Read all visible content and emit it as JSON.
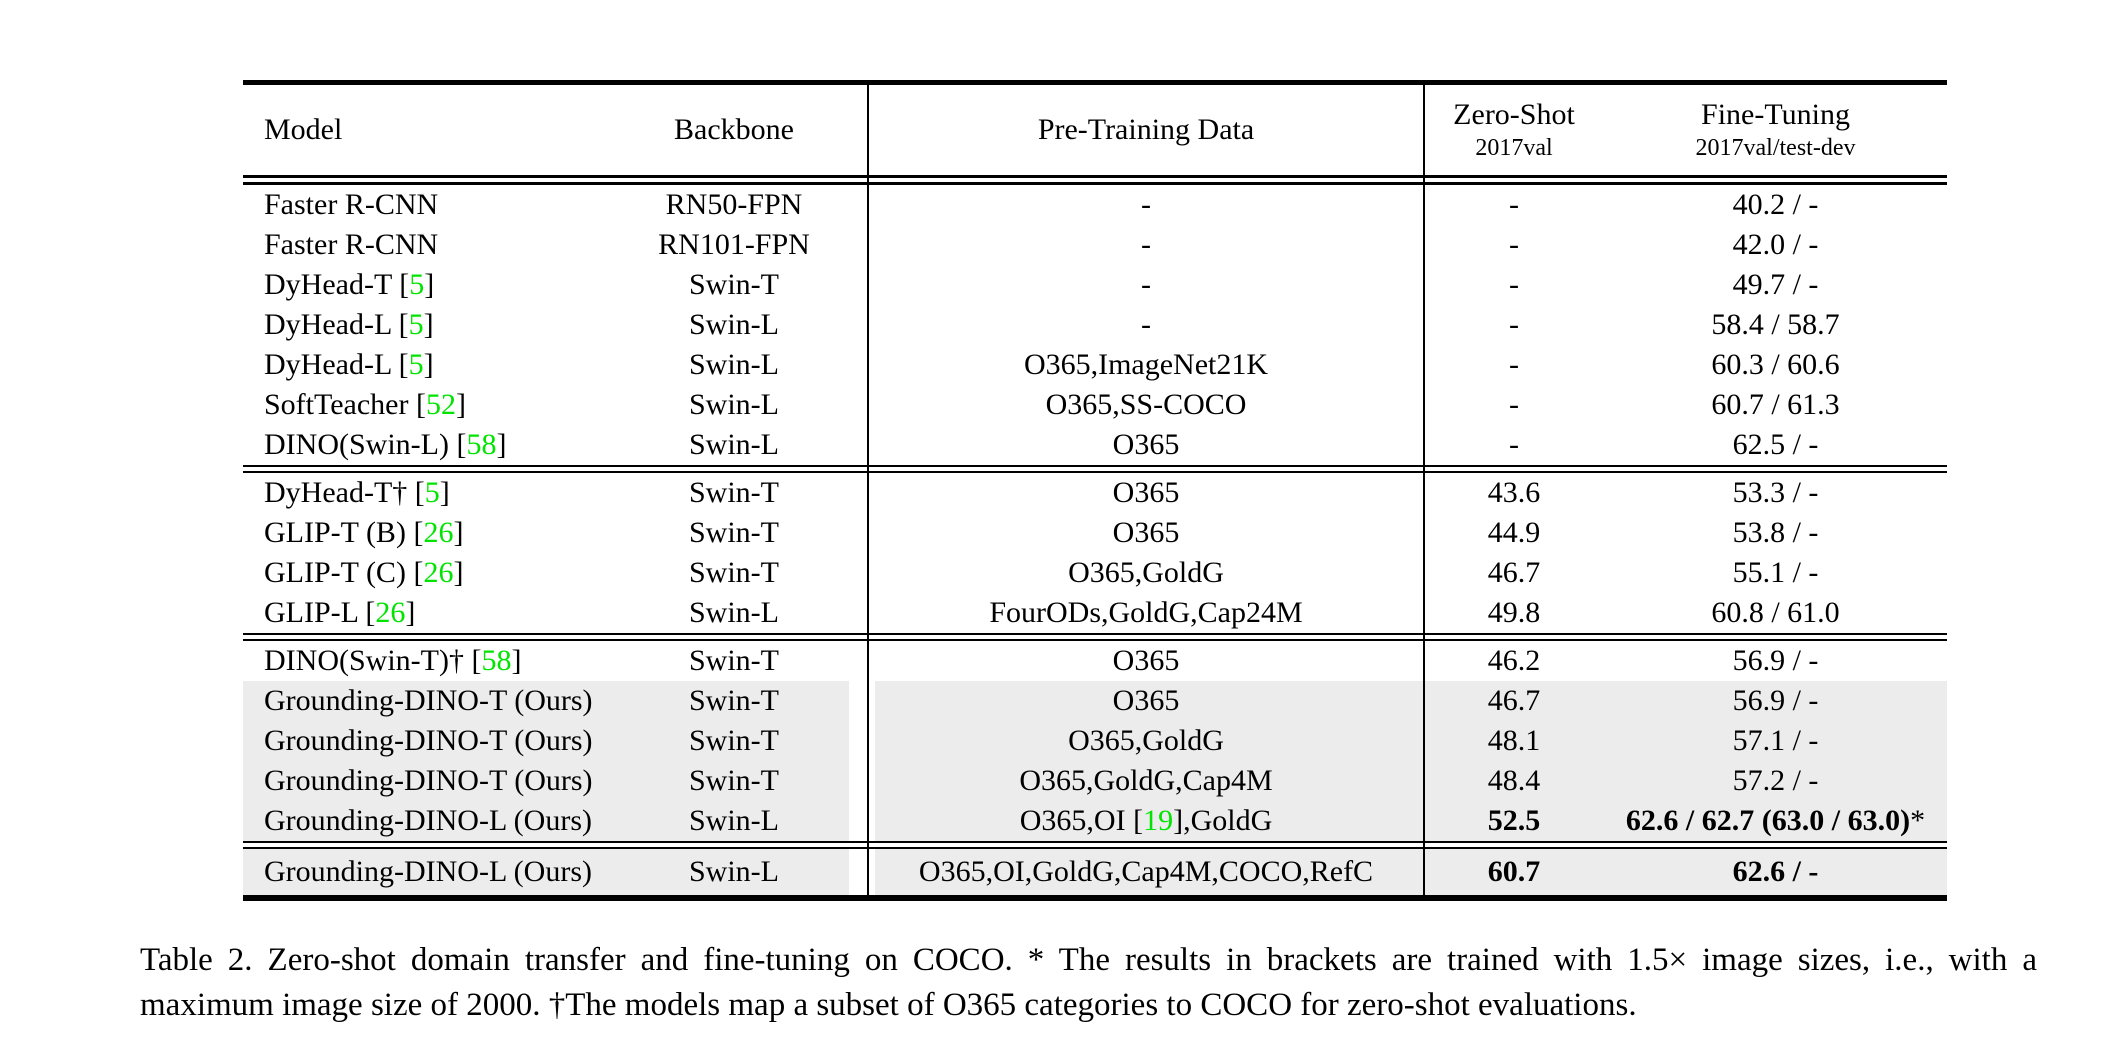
{
  "colors": {
    "citation_green": "#00e400",
    "row_highlight": "#ececec"
  },
  "table": {
    "header": {
      "model": "Model",
      "backbone": "Backbone",
      "pretrain": "Pre-Training Data",
      "zeroshot_line1": "Zero-Shot",
      "zeroshot_line2": "2017val",
      "finetune_line1": "Fine-Tuning",
      "finetune_line2": "2017val/test-dev"
    },
    "groups": [
      {
        "rows": [
          {
            "model": "Faster R-CNN",
            "backbone": "RN50-FPN",
            "pretrain": "-",
            "zeroshot": "-",
            "finetune": "40.2 / -"
          },
          {
            "model": "Faster R-CNN",
            "backbone": "RN101-FPN",
            "pretrain": "-",
            "zeroshot": "-",
            "finetune": "42.0 / -"
          },
          {
            "model": "DyHead-T [5]",
            "backbone": "Swin-T",
            "pretrain": "-",
            "zeroshot": "-",
            "finetune": "49.7 / -"
          },
          {
            "model": "DyHead-L [5]",
            "backbone": "Swin-L",
            "pretrain": "-",
            "zeroshot": "-",
            "finetune": "58.4 / 58.7"
          },
          {
            "model": "DyHead-L [5]",
            "backbone": "Swin-L",
            "pretrain": "O365,ImageNet21K",
            "zeroshot": "-",
            "finetune": "60.3 / 60.6"
          },
          {
            "model": "SoftTeacher [52]",
            "backbone": "Swin-L",
            "pretrain": "O365,SS-COCO",
            "zeroshot": "-",
            "finetune": "60.7 / 61.3"
          },
          {
            "model": "DINO(Swin-L) [58]",
            "backbone": "Swin-L",
            "pretrain": "O365",
            "zeroshot": "-",
            "finetune": "62.5 / -"
          }
        ]
      },
      {
        "rows": [
          {
            "model": "DyHead-T† [5]",
            "backbone": "Swin-T",
            "pretrain": "O365",
            "zeroshot": "43.6",
            "finetune": "53.3 / -"
          },
          {
            "model": "GLIP-T (B) [26]",
            "backbone": "Swin-T",
            "pretrain": "O365",
            "zeroshot": "44.9",
            "finetune": "53.8 / -"
          },
          {
            "model": "GLIP-T (C) [26]",
            "backbone": "Swin-T",
            "pretrain": "O365,GoldG",
            "zeroshot": "46.7",
            "finetune": "55.1 / -"
          },
          {
            "model": "GLIP-L [26]",
            "backbone": "Swin-L",
            "pretrain": "FourODs,GoldG,Cap24M",
            "zeroshot": "49.8",
            "finetune": "60.8 / 61.0"
          }
        ]
      },
      {
        "rows": [
          {
            "model": "DINO(Swin-T)† [58]",
            "backbone": "Swin-T",
            "pretrain": "O365",
            "zeroshot": "46.2",
            "finetune": "56.9 / -"
          },
          {
            "model": "Grounding-DINO-T (Ours)",
            "backbone": "Swin-T",
            "pretrain": "O365",
            "zeroshot": "46.7",
            "finetune": "56.9 / -",
            "highlight": true
          },
          {
            "model": "Grounding-DINO-T (Ours)",
            "backbone": "Swin-T",
            "pretrain": "O365,GoldG",
            "zeroshot": "48.1",
            "finetune": "57.1 / -",
            "highlight": true
          },
          {
            "model": "Grounding-DINO-T (Ours)",
            "backbone": "Swin-T",
            "pretrain": "O365,GoldG,Cap4M",
            "zeroshot": "48.4",
            "finetune": "57.2 / -",
            "highlight": true
          },
          {
            "model": "Grounding-DINO-L (Ours)",
            "backbone": "Swin-L",
            "pretrain": "O365,OI [19],GoldG",
            "zeroshot": "52.5",
            "finetune": "62.6 / 62.7 (63.0 / 63.0)*",
            "highlight": true,
            "bold_zeroshot": true,
            "bold_finetune": true
          }
        ]
      },
      {
        "rows": [
          {
            "model": "Grounding-DINO-L (Ours)",
            "backbone": "Swin-L",
            "pretrain": "O365,OI,GoldG,Cap4M,COCO,RefC",
            "zeroshot": "60.7",
            "finetune": "62.6 / -",
            "highlight": true,
            "bold_zeroshot": true,
            "bold_finetune": true
          }
        ]
      }
    ]
  },
  "caption": {
    "line1": "Table 2. Zero-shot domain transfer and fine-tuning on COCO. * The results in brackets are trained with 1.5× image sizes, i.e., with a",
    "line2": "maximum image size of 2000. †The models map a subset of O365 categories to COCO for zero-shot evaluations."
  }
}
